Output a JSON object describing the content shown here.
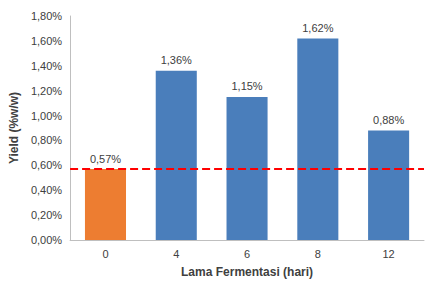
{
  "chart_data": {
    "type": "bar",
    "x_label": "Lama Fermentasi (hari)",
    "y_label": "Yield (%w/w)",
    "categories": [
      "0",
      "4",
      "6",
      "8",
      "12"
    ],
    "values": [
      0.57,
      1.36,
      1.15,
      1.62,
      0.88
    ],
    "value_labels": [
      "0,57%",
      "1,36%",
      "1,15%",
      "1,62%",
      "0,88%"
    ],
    "colors": [
      "#ed7d31",
      "#4a7ebb",
      "#4a7ebb",
      "#4a7ebb",
      "#4a7ebb"
    ],
    "data_labels": true,
    "grid": false,
    "ylim": [
      0,
      1.8
    ],
    "yticks": [
      {
        "value": 0,
        "label": "0,00%"
      },
      {
        "value": 0.2,
        "label": "0,20%"
      },
      {
        "value": 0.4,
        "label": "0,40%"
      },
      {
        "value": 0.6,
        "label": "0,60%"
      },
      {
        "value": 0.8,
        "label": "0,80%"
      },
      {
        "value": 1.0,
        "label": "1,00%"
      },
      {
        "value": 1.2,
        "label": "1,20%"
      },
      {
        "value": 1.4,
        "label": "1,40%"
      },
      {
        "value": 1.6,
        "label": "1,60%"
      },
      {
        "value": 1.8,
        "label": "1,80%"
      }
    ],
    "reference_line": {
      "value": 0.57,
      "color": "#ff0000",
      "line_style": "dashed"
    }
  }
}
